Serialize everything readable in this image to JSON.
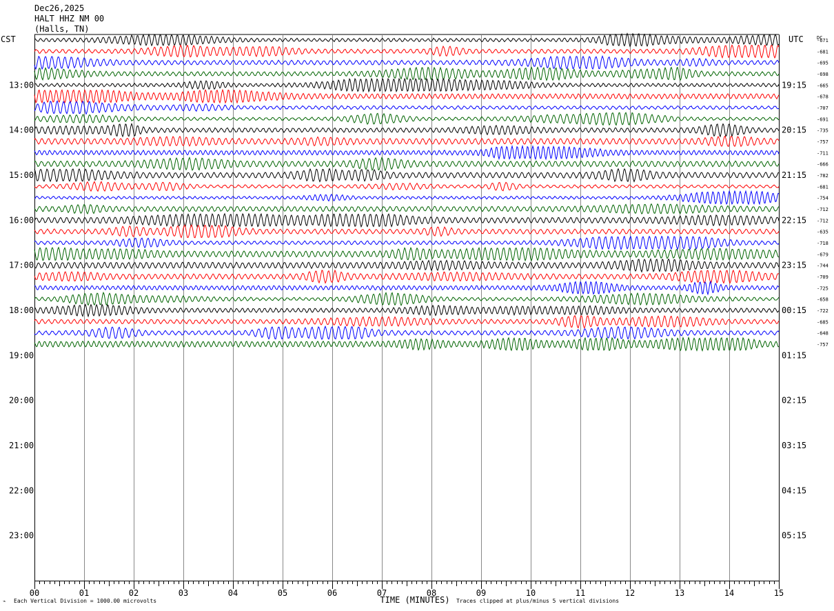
{
  "header": {
    "date": "Dec26,2025",
    "station": "HALT HHZ NM 00",
    "location": "(Halls, TN)"
  },
  "footer": {
    "vertical_division": "Each Vertical Division = 1000.00 microvolts",
    "clipping": "Traces clipped at plus/minus 5 vertical divisions"
  },
  "chart_data": {
    "type": "line",
    "title": "",
    "xlabel": "TIME (MINUTES)",
    "x_ticks": [
      "00",
      "01",
      "02",
      "03",
      "04",
      "05",
      "06",
      "07",
      "08",
      "09",
      "10",
      "11",
      "12",
      "13",
      "14",
      "15"
    ],
    "xlim": [
      0,
      15
    ],
    "left_axis_label": "CST",
    "right_axis_label": "UTC",
    "dc_label": "DC",
    "left_hours": [
      "13:00",
      "14:00",
      "15:00",
      "16:00",
      "17:00",
      "18:00",
      "19:00",
      "20:00",
      "21:00",
      "22:00",
      "23:00"
    ],
    "right_hours": [
      "19:15",
      "20:15",
      "21:15",
      "22:15",
      "23:15",
      "00:15",
      "01:15",
      "02:15",
      "03:15",
      "04:15",
      "05:15"
    ],
    "trace_colors": [
      "#000000",
      "#ff0000",
      "#0000ff",
      "#006400"
    ],
    "rows_total": 48,
    "rows_per_hour": 4,
    "dc_offsets": [
      -671,
      -681,
      -695,
      -698,
      -665,
      -678,
      -707,
      -691,
      -735,
      -757,
      -711,
      -666,
      -782,
      -681,
      -754,
      -712,
      -712,
      -635,
      -718,
      -679,
      -744,
      -709,
      -725,
      -658,
      -722,
      -685,
      -648,
      -757
    ],
    "grid": true
  }
}
